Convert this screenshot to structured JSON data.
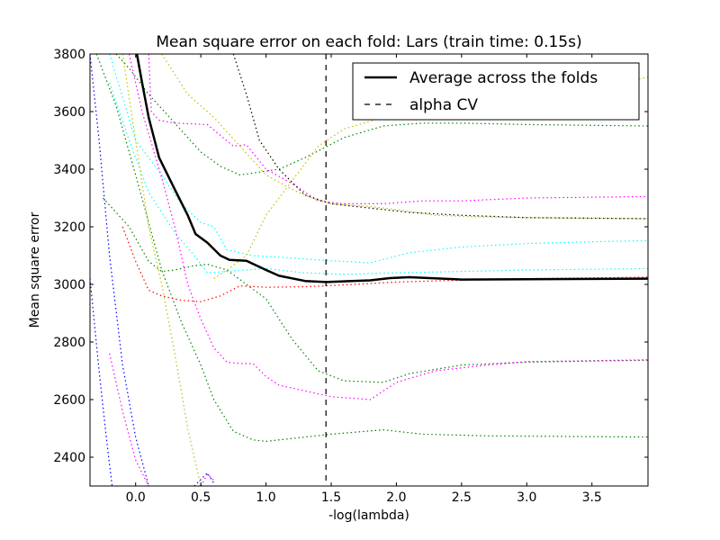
{
  "chart_data": {
    "type": "line",
    "title": "Mean square error on each fold: Lars (train time: 0.15s)",
    "xlabel": "-log(lambda)",
    "ylabel": "Mean square error",
    "xlim": [
      -0.35,
      3.93
    ],
    "ylim": [
      2300,
      3800
    ],
    "x_ticks": [
      "0.0",
      "0.5",
      "1.0",
      "1.5",
      "2.0",
      "2.5",
      "3.0",
      "3.5"
    ],
    "y_ticks": [
      "2400",
      "2600",
      "2800",
      "3000",
      "3200",
      "3400",
      "3600",
      "3800"
    ],
    "x_tick_values": [
      0.0,
      0.5,
      1.0,
      1.5,
      2.0,
      2.5,
      3.0,
      3.5
    ],
    "y_tick_values": [
      2400,
      2600,
      2800,
      3000,
      3200,
      3400,
      3600,
      3800
    ],
    "legend": {
      "position": "upper right",
      "entries": [
        "Average across the folds",
        "alpha CV"
      ]
    },
    "alpha_cv": 1.46,
    "average": {
      "name": "Average across the folds",
      "color": "#000000",
      "points": [
        [
          0.01,
          3800
        ],
        [
          0.05,
          3700
        ],
        [
          0.1,
          3580
        ],
        [
          0.18,
          3440
        ],
        [
          0.3,
          3330
        ],
        [
          0.4,
          3240
        ],
        [
          0.46,
          3175
        ],
        [
          0.55,
          3145
        ],
        [
          0.65,
          3100
        ],
        [
          0.72,
          3085
        ],
        [
          0.85,
          3082
        ],
        [
          1.0,
          3050
        ],
        [
          1.1,
          3030
        ],
        [
          1.3,
          3012
        ],
        [
          1.46,
          3008
        ],
        [
          1.8,
          3014
        ],
        [
          1.95,
          3022
        ],
        [
          2.1,
          3025
        ],
        [
          2.5,
          3017
        ],
        [
          3.0,
          3018
        ],
        [
          3.93,
          3020
        ]
      ]
    },
    "folds": [
      {
        "color": "#00ffff",
        "points": [
          [
            -0.2,
            3800
          ],
          [
            -0.1,
            3650
          ],
          [
            0.0,
            3500
          ],
          [
            0.2,
            3380
          ],
          [
            0.35,
            3280
          ],
          [
            0.5,
            3215
          ],
          [
            0.6,
            3200
          ],
          [
            0.7,
            3120
          ],
          [
            0.9,
            3100
          ],
          [
            1.2,
            3092
          ],
          [
            1.5,
            3082
          ],
          [
            1.8,
            3075
          ],
          [
            2.1,
            3110
          ],
          [
            2.5,
            3130
          ],
          [
            3.0,
            3142
          ],
          [
            3.5,
            3148
          ],
          [
            3.93,
            3152
          ]
        ]
      },
      {
        "color": "#00ffff",
        "points": [
          [
            -0.2,
            3700
          ],
          [
            -0.05,
            3500
          ],
          [
            0.1,
            3320
          ],
          [
            0.3,
            3180
          ],
          [
            0.45,
            3100
          ],
          [
            0.55,
            3040
          ],
          [
            0.7,
            3045
          ],
          [
            1.0,
            3055
          ],
          [
            1.3,
            3040
          ],
          [
            1.6,
            3035
          ],
          [
            2.0,
            3040
          ],
          [
            2.5,
            3045
          ],
          [
            3.0,
            3050
          ],
          [
            3.93,
            3055
          ]
        ]
      },
      {
        "color": "#008000",
        "points": [
          [
            -0.15,
            3800
          ],
          [
            -0.05,
            3750
          ],
          [
            0.1,
            3660
          ],
          [
            0.3,
            3560
          ],
          [
            0.5,
            3460
          ],
          [
            0.65,
            3410
          ],
          [
            0.8,
            3380
          ],
          [
            0.95,
            3390
          ],
          [
            1.1,
            3400
          ],
          [
            1.3,
            3440
          ],
          [
            1.6,
            3510
          ],
          [
            1.9,
            3550
          ],
          [
            2.2,
            3560
          ],
          [
            2.5,
            3560
          ],
          [
            3.0,
            3555
          ],
          [
            3.93,
            3550
          ]
        ]
      },
      {
        "color": "#008000",
        "points": [
          [
            -0.25,
            3300
          ],
          [
            -0.05,
            3200
          ],
          [
            0.1,
            3080
          ],
          [
            0.2,
            3045
          ],
          [
            0.3,
            3050
          ],
          [
            0.45,
            3065
          ],
          [
            0.55,
            3070
          ],
          [
            0.7,
            3050
          ],
          [
            1.0,
            2950
          ],
          [
            1.2,
            2810
          ],
          [
            1.4,
            2700
          ],
          [
            1.6,
            2665
          ],
          [
            1.9,
            2660
          ],
          [
            2.1,
            2690
          ],
          [
            2.5,
            2720
          ],
          [
            3.0,
            2730
          ],
          [
            3.93,
            2737
          ]
        ]
      },
      {
        "color": "#008000",
        "points": [
          [
            -0.3,
            3800
          ],
          [
            -0.15,
            3620
          ],
          [
            0.0,
            3380
          ],
          [
            0.2,
            3050
          ],
          [
            0.35,
            2870
          ],
          [
            0.5,
            2720
          ],
          [
            0.6,
            2600
          ],
          [
            0.75,
            2490
          ],
          [
            0.9,
            2460
          ],
          [
            1.0,
            2455
          ],
          [
            1.2,
            2465
          ],
          [
            1.5,
            2480
          ],
          [
            1.9,
            2495
          ],
          [
            2.2,
            2480
          ],
          [
            2.7,
            2474
          ],
          [
            3.93,
            2470
          ]
        ]
      },
      {
        "color": "#ff00ff",
        "points": [
          [
            0.1,
            3800
          ],
          [
            0.12,
            3600
          ],
          [
            0.18,
            3570
          ],
          [
            0.3,
            3560
          ],
          [
            0.55,
            3555
          ],
          [
            0.75,
            3480
          ],
          [
            0.85,
            3485
          ],
          [
            1.0,
            3400
          ],
          [
            1.2,
            3350
          ],
          [
            1.4,
            3290
          ],
          [
            1.6,
            3280
          ],
          [
            1.9,
            3280
          ],
          [
            2.2,
            3290
          ],
          [
            2.5,
            3290
          ],
          [
            3.0,
            3300
          ],
          [
            3.93,
            3305
          ]
        ]
      },
      {
        "color": "#ff00ff",
        "points": [
          [
            -0.05,
            3800
          ],
          [
            0.05,
            3600
          ],
          [
            0.2,
            3370
          ],
          [
            0.3,
            3200
          ],
          [
            0.4,
            3000
          ],
          [
            0.5,
            2880
          ],
          [
            0.6,
            2780
          ],
          [
            0.7,
            2730
          ],
          [
            0.8,
            2725
          ],
          [
            0.9,
            2725
          ],
          [
            1.0,
            2680
          ],
          [
            1.1,
            2650
          ],
          [
            1.3,
            2630
          ],
          [
            1.5,
            2610
          ],
          [
            1.8,
            2600
          ],
          [
            2.0,
            2660
          ],
          [
            2.3,
            2700
          ],
          [
            2.7,
            2720
          ],
          [
            3.0,
            2732
          ],
          [
            3.93,
            2738
          ]
        ]
      },
      {
        "color": "#ff00ff",
        "points": [
          [
            -0.2,
            2760
          ],
          [
            -0.1,
            2560
          ],
          [
            0.0,
            2390
          ],
          [
            0.1,
            2300
          ]
        ]
      },
      {
        "color": "#ff00ff",
        "points": [
          [
            0.5,
            2300
          ],
          [
            0.55,
            2340
          ],
          [
            0.6,
            2320
          ]
        ]
      },
      {
        "color": "#0000ff",
        "points": [
          [
            -0.35,
            3800
          ],
          [
            -0.28,
            3500
          ],
          [
            -0.2,
            3100
          ],
          [
            -0.1,
            2720
          ],
          [
            0.0,
            2470
          ],
          [
            0.1,
            2300
          ]
        ]
      },
      {
        "color": "#0000ff",
        "points": [
          [
            -0.35,
            3020
          ],
          [
            -0.28,
            2700
          ],
          [
            -0.22,
            2450
          ],
          [
            -0.18,
            2300
          ]
        ]
      },
      {
        "color": "#0000ff",
        "points": [
          [
            0.45,
            2300
          ],
          [
            0.55,
            2345
          ],
          [
            0.6,
            2310
          ]
        ]
      },
      {
        "color": "#ff0000",
        "points": [
          [
            -0.1,
            3200
          ],
          [
            0.0,
            3080
          ],
          [
            0.1,
            2980
          ],
          [
            0.2,
            2960
          ],
          [
            0.35,
            2945
          ],
          [
            0.5,
            2940
          ],
          [
            0.65,
            2960
          ],
          [
            0.8,
            2995
          ],
          [
            1.0,
            2990
          ],
          [
            1.3,
            2992
          ],
          [
            1.6,
            2998
          ],
          [
            2.0,
            3008
          ],
          [
            2.5,
            3015
          ],
          [
            3.0,
            3020
          ],
          [
            3.93,
            3025
          ]
        ]
      },
      {
        "color": "#bfbf00",
        "points": [
          [
            0.2,
            3800
          ],
          [
            0.4,
            3660
          ],
          [
            0.6,
            3580
          ],
          [
            0.8,
            3480
          ],
          [
            1.0,
            3380
          ],
          [
            1.2,
            3330
          ],
          [
            1.35,
            3300
          ],
          [
            1.5,
            3280
          ],
          [
            1.8,
            3270
          ],
          [
            2.0,
            3260
          ],
          [
            2.3,
            3240
          ],
          [
            2.6,
            3235
          ],
          [
            3.0,
            3232
          ],
          [
            3.93,
            3228
          ]
        ]
      },
      {
        "color": "#bfbf00",
        "points": [
          [
            -0.1,
            3800
          ],
          [
            0.0,
            3500
          ],
          [
            0.1,
            3200
          ],
          [
            0.2,
            3000
          ],
          [
            0.3,
            2760
          ],
          [
            0.4,
            2500
          ],
          [
            0.5,
            2300
          ]
        ]
      },
      {
        "color": "#bfbf00",
        "points": [
          [
            0.6,
            3020
          ],
          [
            0.7,
            3050
          ],
          [
            0.85,
            3100
          ],
          [
            1.0,
            3240
          ],
          [
            1.2,
            3360
          ],
          [
            1.4,
            3480
          ],
          [
            1.6,
            3540
          ],
          [
            1.9,
            3580
          ],
          [
            2.2,
            3600
          ],
          [
            2.6,
            3620
          ],
          [
            3.0,
            3640
          ],
          [
            3.5,
            3680
          ],
          [
            3.93,
            3720
          ]
        ]
      },
      {
        "color": "#000000",
        "points": [
          [
            0.75,
            3800
          ],
          [
            0.85,
            3660
          ],
          [
            0.95,
            3500
          ],
          [
            1.1,
            3400
          ],
          [
            1.3,
            3310
          ],
          [
            1.5,
            3280
          ],
          [
            1.8,
            3265
          ],
          [
            2.1,
            3250
          ],
          [
            2.5,
            3240
          ],
          [
            3.0,
            3232
          ],
          [
            3.93,
            3228
          ]
        ]
      }
    ]
  }
}
